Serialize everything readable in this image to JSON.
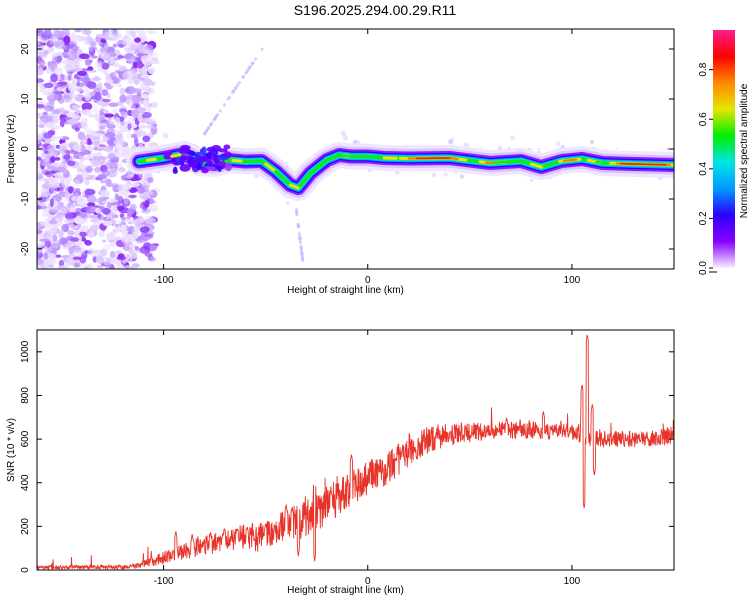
{
  "title": "S196.2025.294.00.29.R11",
  "chart_data": [
    {
      "type": "heatmap",
      "xlabel": "Height of straight line (km)",
      "ylabel": "Frequency (Hz)",
      "xlim": [
        -162,
        150
      ],
      "ylim": [
        -24,
        24
      ],
      "xticks": [
        -100,
        0,
        100
      ],
      "yticks": [
        -20,
        -10,
        0,
        10,
        20
      ],
      "ridge": [
        [
          -112,
          -2.5
        ],
        [
          -100,
          -1.8
        ],
        [
          -90,
          -1.0
        ],
        [
          -82,
          -2.8
        ],
        [
          -75,
          -3.0
        ],
        [
          -68,
          -2.2
        ],
        [
          -60,
          -2.5
        ],
        [
          -52,
          -2.4
        ],
        [
          -45,
          -4.5
        ],
        [
          -38,
          -7.2
        ],
        [
          -34,
          -7.8
        ],
        [
          -28,
          -4.8
        ],
        [
          -20,
          -2.2
        ],
        [
          -14,
          -1.2
        ],
        [
          -8,
          -1.5
        ],
        [
          0,
          -1.5
        ],
        [
          8,
          -1.8
        ],
        [
          20,
          -1.9
        ],
        [
          40,
          -1.8
        ],
        [
          60,
          -2.8
        ],
        [
          75,
          -2.4
        ],
        [
          85,
          -3.6
        ],
        [
          95,
          -2.4
        ],
        [
          105,
          -2.0
        ],
        [
          115,
          -2.8
        ],
        [
          130,
          -3.0
        ],
        [
          150,
          -3.2
        ]
      ],
      "colorbar": {
        "label": "Normalized spectral amplitude",
        "ticks": [
          "0.0",
          "0.2",
          "0.4",
          "0.6",
          "0.8"
        ],
        "tick_values": [
          0.0,
          0.2,
          0.4,
          0.6,
          0.8
        ],
        "range": [
          0.0,
          0.96
        ],
        "colors": [
          "#f5f0ff",
          "#8a00ff",
          "#2b00ff",
          "#0099ff",
          "#00e5e5",
          "#00ee00",
          "#e6e600",
          "#ff8800",
          "#ff0000",
          "#ff1d8e"
        ]
      }
    },
    {
      "type": "line",
      "xlabel": "Height of straight line (km)",
      "ylabel": "SNR (10 * v/v)",
      "xlim": [
        -162,
        150
      ],
      "ylim": [
        0,
        1100
      ],
      "xticks": [
        -100,
        0,
        100
      ],
      "yticks": [
        0,
        200,
        400,
        600,
        800,
        1000
      ],
      "color": "#e8332a",
      "envelope": [
        [
          -162,
          12
        ],
        [
          -115,
          15
        ],
        [
          -100,
          55
        ],
        [
          -90,
          85
        ],
        [
          -80,
          110
        ],
        [
          -70,
          140
        ],
        [
          -60,
          150
        ],
        [
          -50,
          150
        ],
        [
          -45,
          175
        ],
        [
          -40,
          210
        ],
        [
          -35,
          215
        ],
        [
          -25,
          260
        ],
        [
          -15,
          330
        ],
        [
          -10,
          360
        ],
        [
          0,
          420
        ],
        [
          10,
          470
        ],
        [
          20,
          540
        ],
        [
          30,
          600
        ],
        [
          40,
          620
        ],
        [
          50,
          630
        ],
        [
          60,
          640
        ],
        [
          80,
          640
        ],
        [
          100,
          630
        ],
        [
          105,
          620
        ],
        [
          110,
          600
        ],
        [
          120,
          600
        ],
        [
          140,
          600
        ],
        [
          150,
          620
        ]
      ],
      "noise": [
        [
          -162,
          8
        ],
        [
          -115,
          10
        ],
        [
          -100,
          30
        ],
        [
          -60,
          60
        ],
        [
          -40,
          80
        ],
        [
          -20,
          90
        ],
        [
          0,
          80
        ],
        [
          20,
          70
        ],
        [
          60,
          40
        ],
        [
          150,
          40
        ]
      ],
      "spikes": [
        [
          -94,
          180
        ],
        [
          -86,
          165
        ],
        [
          -77,
          175
        ],
        [
          -71,
          170
        ],
        [
          -64,
          190
        ],
        [
          -59,
          200
        ],
        [
          -50,
          215
        ],
        [
          -40,
          300
        ],
        [
          -37,
          290
        ],
        [
          -31,
          240
        ],
        [
          -24,
          300
        ],
        [
          -18,
          370
        ],
        [
          -8,
          530
        ],
        [
          14,
          510
        ],
        [
          23,
          560
        ],
        [
          35,
          585
        ],
        [
          68,
          700
        ],
        [
          86,
          730
        ],
        [
          105,
          850
        ],
        [
          107.5,
          1080
        ],
        [
          110,
          760
        ]
      ],
      "dips": [
        [
          -34,
          60
        ],
        [
          -26,
          40
        ],
        [
          -3,
          420
        ],
        [
          106,
          280
        ],
        [
          111,
          430
        ]
      ]
    }
  ]
}
